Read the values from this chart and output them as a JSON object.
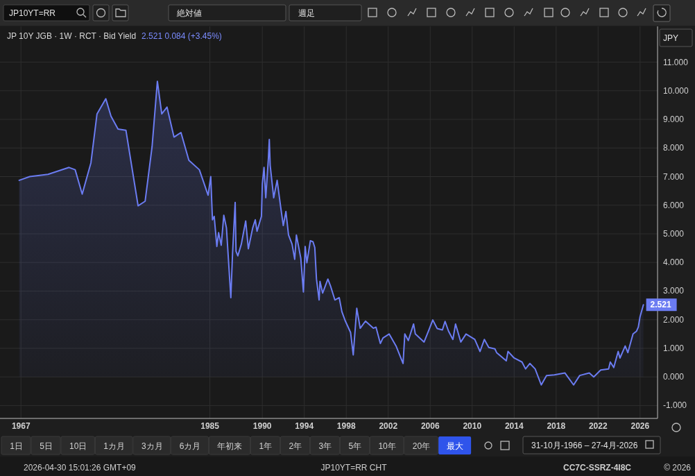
{
  "chart_data": {
    "type": "area",
    "title": "JP 10Y JGB · 1W · RCT · Bid Yield",
    "subtitle": "2.521  0.084 (+3.45%)",
    "xlim": [
      "1965-01",
      "2027-09"
    ],
    "xticks": [
      "1967",
      "1985",
      "1990",
      "1994",
      "1998",
      "2002",
      "2006",
      "2010",
      "2014",
      "2018",
      "2022",
      "2026"
    ],
    "ylim": [
      -1.45,
      12.25
    ],
    "yticks": [
      {
        "value": -1,
        "label": "-1.000"
      },
      {
        "value": 0,
        "label": "0.000"
      },
      {
        "value": 1,
        "label": "1.000"
      },
      {
        "value": 2,
        "label": "2.000"
      },
      {
        "value": 3,
        "label": "3.000"
      },
      {
        "value": 4,
        "label": "4.000"
      },
      {
        "value": 5,
        "label": "5.000"
      },
      {
        "value": 6,
        "label": "6.000"
      },
      {
        "value": 7,
        "label": "7.000"
      },
      {
        "value": 8,
        "label": "8.000"
      },
      {
        "value": 9,
        "label": "9.000"
      },
      {
        "value": 10,
        "label": "10.000"
      },
      {
        "value": 11,
        "label": "11.000"
      }
    ],
    "grid": true,
    "series": [
      {
        "color": "#6b7cf2",
        "x": [
          "1966-10-31",
          "1967-11",
          "1969-08",
          "1971-08",
          "1972-03",
          "1972-11",
          "1973-09",
          "1974-04",
          "1975-02",
          "1975-08",
          "1976-04",
          "1977-01",
          "1978-03",
          "1978-11",
          "1979-07",
          "1980-01",
          "1980-06",
          "1980-12",
          "1981-08",
          "1982-04",
          "1983-01",
          "1984-01",
          "1984-11",
          "1985-02",
          "1985-04",
          "1985-06",
          "1985-09",
          "1985-11",
          "1986-02",
          "1986-05",
          "1986-08",
          "1987-01",
          "1987-03",
          "1987-06",
          "1987-07",
          "1987-09",
          "1988-01",
          "1988-06",
          "1988-09",
          "1989-02",
          "1989-05",
          "1989-07",
          "1989-12",
          "1990-01",
          "1990-03",
          "1990-05",
          "1990-08",
          "1990-09",
          "1990-10",
          "1991-02",
          "1991-06",
          "1991-10",
          "1992-01",
          "1992-04",
          "1992-07",
          "1992-11",
          "1993-02",
          "1993-04",
          "1993-09",
          "1993-12",
          "1994-02",
          "1994-04",
          "1994-08",
          "1994-11",
          "1995-01",
          "1995-03",
          "1995-06",
          "1995-07",
          "1995-10",
          "1996-04",
          "1996-07",
          "1996-12",
          "1997-05",
          "1997-08",
          "1997-12",
          "1998-06",
          "1998-09",
          "1999-01",
          "1999-05",
          "1999-11",
          "2000-08",
          "2000-11",
          "2001-04",
          "2001-07",
          "2002-02",
          "2002-10",
          "2003-06",
          "2003-08",
          "2003-12",
          "2004-06",
          "2004-08",
          "2005-06",
          "2005-11",
          "2006-04",
          "2006-09",
          "2007-03",
          "2007-06",
          "2007-10",
          "2008-03",
          "2008-06",
          "2008-12",
          "2009-06",
          "2010-04",
          "2010-10",
          "2011-03",
          "2011-08",
          "2012-03",
          "2012-05",
          "2013-04",
          "2013-06",
          "2014-01",
          "2014-10",
          "2015-02",
          "2015-07",
          "2016-01",
          "2016-08",
          "2017-02",
          "2017-11",
          "2018-11",
          "2019-09",
          "2020-04",
          "2021-03",
          "2021-08",
          "2022-04",
          "2023-01",
          "2023-03",
          "2023-07",
          "2023-12",
          "2024-02",
          "2024-08",
          "2024-11",
          "2025-05",
          "2025-09",
          "2025-11",
          "2026-01",
          "2026-04-27"
        ],
        "values": [
          6.87,
          7.0,
          7.08,
          7.32,
          7.24,
          6.39,
          7.48,
          9.19,
          9.72,
          9.11,
          8.66,
          8.62,
          5.98,
          6.14,
          8.05,
          10.33,
          9.19,
          9.43,
          8.38,
          8.54,
          7.57,
          7.24,
          6.35,
          7.0,
          5.49,
          5.61,
          4.56,
          5.04,
          4.6,
          5.65,
          5.21,
          2.77,
          4.31,
          6.1,
          4.39,
          4.23,
          4.64,
          5.45,
          4.48,
          5.21,
          5.49,
          5.09,
          5.61,
          6.75,
          7.32,
          6.26,
          7.65,
          8.3,
          7.4,
          6.26,
          6.87,
          5.94,
          5.29,
          5.78,
          4.96,
          4.64,
          4.11,
          4.96,
          4.15,
          2.97,
          4.56,
          3.99,
          4.76,
          4.72,
          4.52,
          3.42,
          2.69,
          3.34,
          2.93,
          3.42,
          3.18,
          2.69,
          2.77,
          2.28,
          1.95,
          1.55,
          0.77,
          2.4,
          1.7,
          1.95,
          1.7,
          1.74,
          1.17,
          1.36,
          1.5,
          1.08,
          0.47,
          1.5,
          1.27,
          1.85,
          1.5,
          1.22,
          1.6,
          1.99,
          1.69,
          1.64,
          1.94,
          1.6,
          1.31,
          1.85,
          1.22,
          1.5,
          1.31,
          0.89,
          1.31,
          1.03,
          0.98,
          0.85,
          0.56,
          0.89,
          0.66,
          0.52,
          0.28,
          0.47,
          0.28,
          -0.28,
          0.05,
          0.07,
          0.14,
          -0.28,
          0.05,
          0.14,
          0.0,
          0.24,
          0.28,
          0.52,
          0.33,
          0.89,
          0.66,
          1.08,
          0.85,
          1.5,
          1.6,
          1.74,
          2.11,
          2.521
        ],
        "value_labels": [
          null,
          null,
          null,
          null,
          null,
          null,
          null,
          null,
          null,
          null,
          null,
          null,
          null,
          null,
          null,
          null,
          null,
          null,
          null,
          null,
          null,
          null,
          null,
          null,
          null,
          null,
          null,
          null,
          null,
          null,
          null,
          null,
          null,
          null,
          null,
          null,
          null,
          null,
          null,
          null,
          null,
          null,
          null,
          null,
          null,
          null,
          null,
          null,
          null,
          null,
          null,
          null,
          null,
          null,
          null,
          null,
          null,
          null,
          null,
          null,
          null,
          null,
          null,
          null,
          null,
          null,
          null,
          null,
          null,
          null,
          null,
          null,
          null,
          null,
          null,
          null,
          null,
          null,
          null,
          null,
          null,
          null,
          null,
          null,
          null,
          null,
          null,
          null,
          null,
          null,
          null,
          null,
          null,
          null,
          null,
          null,
          null,
          null,
          null,
          null,
          null,
          null,
          null,
          null,
          null,
          null,
          null,
          null,
          null,
          null,
          null,
          null,
          null,
          null,
          null,
          null,
          null,
          null,
          null,
          null,
          null,
          null,
          null,
          null,
          null,
          null,
          null,
          null,
          null,
          null,
          null,
          null,
          null,
          null,
          null,
          "2.521"
        ]
      }
    ],
    "annotations": [
      "JP10YT=RR",
      "絶対値",
      "週足",
      "JPY",
      "1日",
      "5日",
      "10日",
      "1カ月",
      "3カ月",
      "6カ月",
      "年初来",
      "1年",
      "2年",
      "3年",
      "5年",
      "10年",
      "20年",
      "最大",
      "31-10月-1966 – 27-4月-2026",
      "2026-04-30 15:01:26 GMT+09",
      "JP10YT=RR CHT",
      "CC7C-SSRZ-4I8C",
      "© 2026"
    ]
  }
}
